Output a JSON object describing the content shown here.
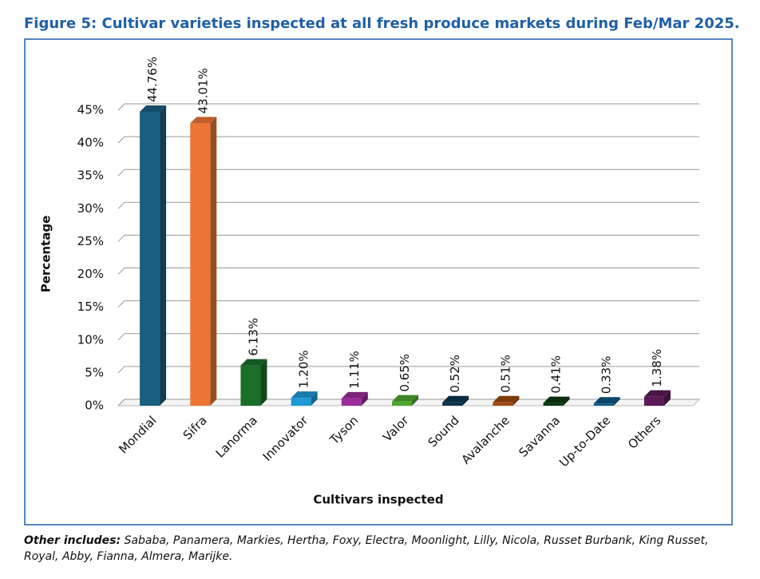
{
  "chart_data": {
    "type": "bar",
    "title": "Figure 5: Cultivar varieties inspected at all fresh produce markets during Feb/Mar 2025.",
    "x_label": "Cultivars inspected",
    "y_label": "Percentage",
    "categories": [
      "Mondial",
      "Sifra",
      "Lanorma",
      "Innovator",
      "Tyson",
      "Valor",
      "Sound",
      "Avalanche",
      "Savanna",
      "Up-to-Date",
      "Others"
    ],
    "values": [
      44.76,
      43.01,
      6.13,
      1.2,
      1.11,
      0.65,
      0.52,
      0.51,
      0.41,
      0.33,
      1.38
    ],
    "value_labels": [
      "44.76%",
      "43.01%",
      "6.13%",
      "1.20%",
      "1.11%",
      "0.65%",
      "0.52%",
      "0.51%",
      "0.41%",
      "0.33%",
      "1.38%"
    ],
    "colors": [
      "#1a5f80",
      "#ed7533",
      "#1a6e2a",
      "#1e9ad6",
      "#9b2d9b",
      "#4ea72e",
      "#0d3550",
      "#a04a0e",
      "#0e3a14",
      "#0e5a85",
      "#5a1a55"
    ],
    "ylim": [
      0,
      45
    ],
    "yticks": [
      {
        "value": 0,
        "label": "0%"
      },
      {
        "value": 5,
        "label": "5%"
      },
      {
        "value": 10,
        "label": "10%"
      },
      {
        "value": 15,
        "label": "15%"
      },
      {
        "value": 20,
        "label": "20%"
      },
      {
        "value": 25,
        "label": "25%"
      },
      {
        "value": 30,
        "label": "30%"
      },
      {
        "value": 35,
        "label": "35%"
      },
      {
        "value": 40,
        "label": "40%"
      },
      {
        "value": 45,
        "label": "45%"
      }
    ],
    "grid": true,
    "footnote_label": "Other includes:",
    "footnote": "Sababa, Panamera, Markies, Hertha, Foxy, Electra, Moonlight, Lilly, Nicola, Russet Burbank, King Russet, Royal, Abby, Fianna, Almera, Marijke."
  }
}
